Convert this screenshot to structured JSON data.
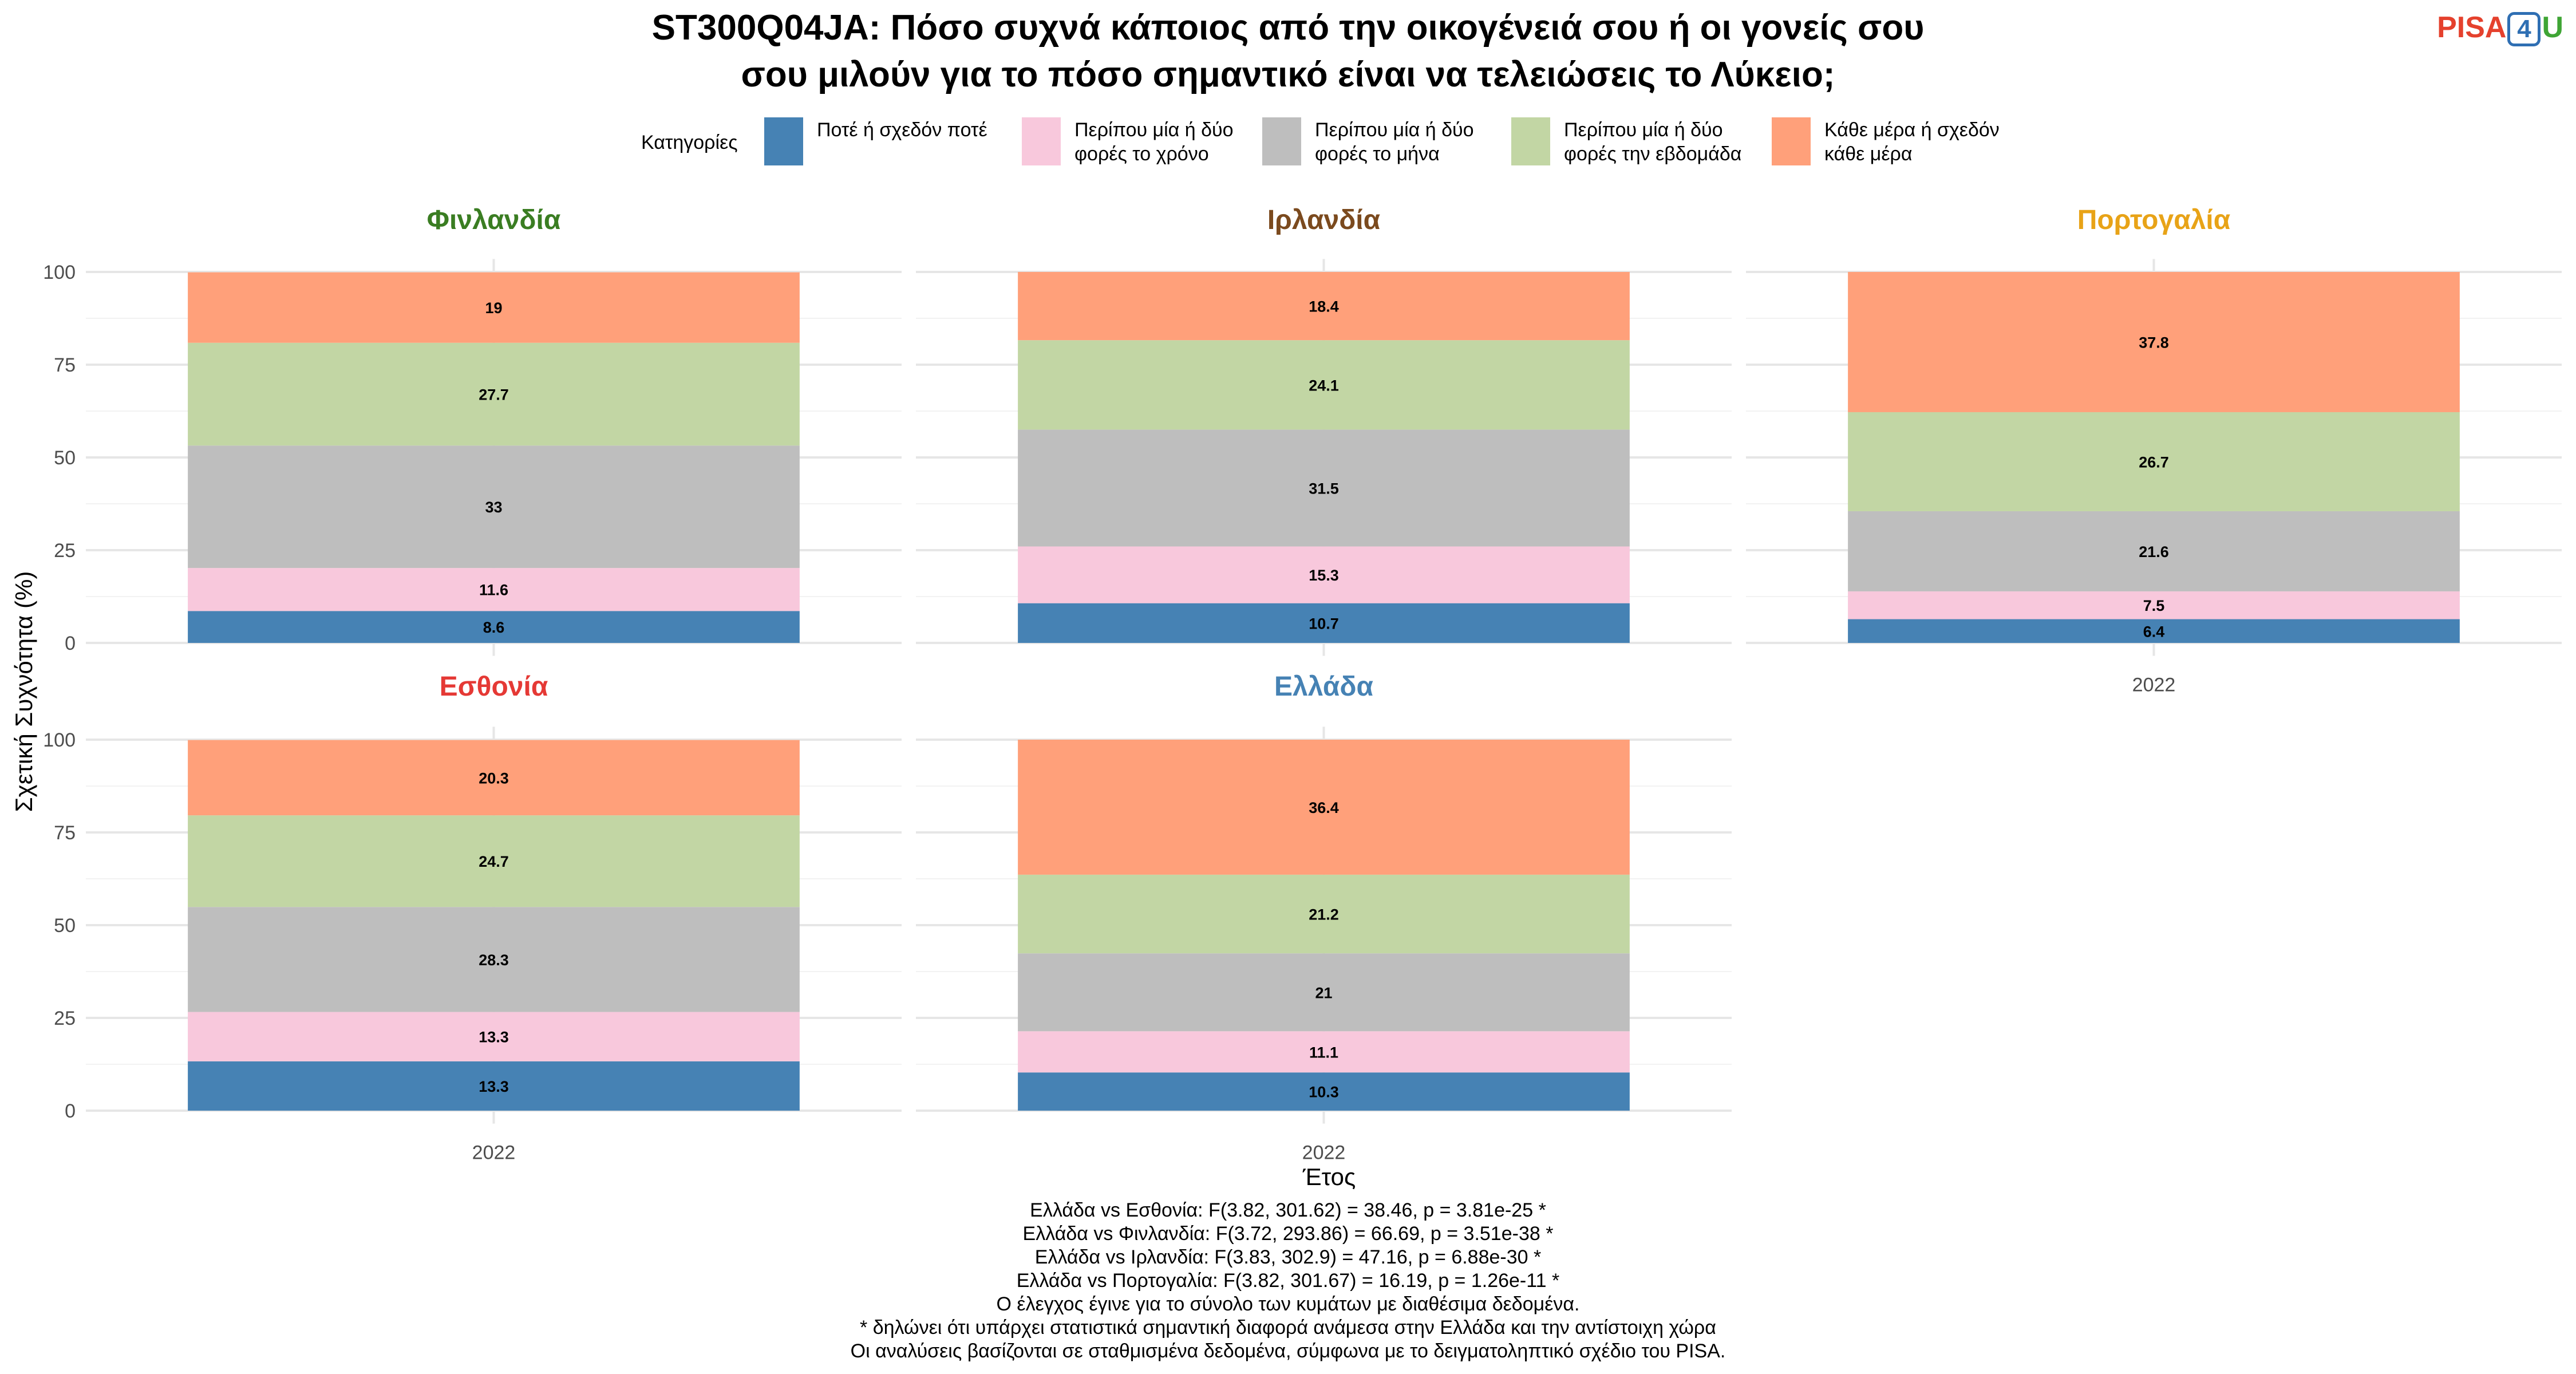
{
  "title_line1": "ST300Q04JA: Πόσο συχνά κάποιος από την οικογένειά σου ή οι γονείς σου",
  "title_line2": "σου μιλούν για το πόσο σημαντικό είναι να τελειώσεις το Λύκειο;",
  "logo": {
    "pisa": "PISA",
    "four": "4",
    "u": "U"
  },
  "legend_title": "Κατηγορίες",
  "chart_data": {
    "type": "bar",
    "stacked": true,
    "xlabel": "Έτος",
    "ylabel": "Σχετική Συχνότητα (%)",
    "ylim": [
      0,
      100
    ],
    "yticks": [
      0,
      25,
      50,
      75,
      100
    ],
    "grid": true,
    "legend_position": "top",
    "categories_order": [
      {
        "name": "Ποτέ ή σχεδόν ποτέ",
        "color": "#4682b4"
      },
      {
        "name": "Περίπου μία ή δύο\nφορές το χρόνο",
        "color": "#f8c8dc"
      },
      {
        "name": "Περίπου μία ή δύο\nφορές το μήνα",
        "color": "#bebebe"
      },
      {
        "name": "Περίπου μία ή δύο\nφορές την εβδομάδα",
        "color": "#c2d6a4"
      },
      {
        "name": "Κάθε μέρα ή σχεδόν\nκάθε μέρα",
        "color": "#ffa07a"
      }
    ],
    "panels": [
      {
        "country": "Φινλανδία",
        "title_color": "#3a7d22",
        "year": "2022",
        "values": [
          8.6,
          11.6,
          33,
          27.7,
          19
        ]
      },
      {
        "country": "Ιρλανδία",
        "title_color": "#7b4a1e",
        "year": "2022",
        "values": [
          10.7,
          15.3,
          31.5,
          24.1,
          18.4
        ]
      },
      {
        "country": "Πορτογαλία",
        "title_color": "#e8a317",
        "year": "2022",
        "values": [
          6.4,
          7.5,
          21.6,
          26.7,
          37.8
        ]
      },
      {
        "country": "Εσθονία",
        "title_color": "#e53935",
        "year": "2022",
        "values": [
          13.3,
          13.3,
          28.3,
          24.7,
          20.3
        ]
      },
      {
        "country": "Ελλάδα",
        "title_color": "#4682b4",
        "year": "2022",
        "values": [
          10.3,
          11.1,
          21,
          21.2,
          36.4
        ]
      }
    ]
  },
  "footer_lines": [
    "Ελλάδα vs Εσθονία: F(3.82, 301.62) = 38.46, p = 3.81e-25 *",
    "Ελλάδα vs Φινλανδία: F(3.72, 293.86) = 66.69, p = 3.51e-38 *",
    "Ελλάδα vs Ιρλανδία: F(3.83, 302.9) = 47.16, p = 6.88e-30 *",
    "Ελλάδα vs Πορτογαλία: F(3.82, 301.67) = 16.19, p = 1.26e-11 *",
    "Ο έλεγχος έγινε για το σύνολο των κυμάτων με διαθέσιμα δεδομένα.",
    "* δηλώνει ότι υπάρχει στατιστικά σημαντική διαφορά ανάμεσα στην Ελλάδα και την αντίστοιχη χώρα",
    "Οι αναλύσεις βασίζονται σε σταθμισμένα δεδομένα, σύμφωνα με το δειγματοληπτικό σχέδιο του PISA."
  ]
}
